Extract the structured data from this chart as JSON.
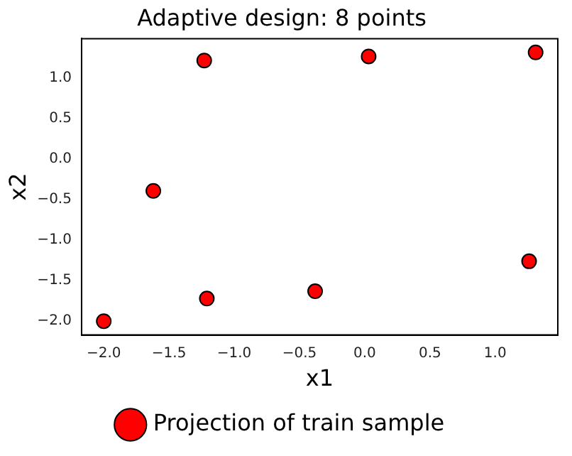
{
  "chart_data": {
    "type": "scatter",
    "title": "Adaptive design: 8 points",
    "xlabel": "x1",
    "ylabel": "x2",
    "series": [
      {
        "name": "Projection of train sample",
        "color": "#ff0000",
        "x": [
          -1.23,
          0.03,
          1.31,
          -1.62,
          1.26,
          -0.38,
          -1.21,
          -2.0
        ],
        "values": [
          1.22,
          1.27,
          1.32,
          -0.39,
          -1.26,
          -1.63,
          -1.72,
          -2.0
        ]
      }
    ],
    "xlim": [
      -2.17,
      1.48
    ],
    "ylim": [
      -2.17,
      1.49
    ],
    "xticks": [
      {
        "value": -2,
        "label": "−2.0"
      },
      {
        "value": -1.5,
        "label": "−1.5"
      },
      {
        "value": -1,
        "label": "−1.0"
      },
      {
        "value": -0.5,
        "label": "−0.5"
      },
      {
        "value": 0,
        "label": "0.0"
      },
      {
        "value": 0.5,
        "label": "0.5"
      },
      {
        "value": 1,
        "label": "1.0"
      }
    ],
    "yticks": [
      {
        "value": -2,
        "label": "−2.0"
      },
      {
        "value": -1.5,
        "label": "−1.5"
      },
      {
        "value": -1,
        "label": "−1.0"
      },
      {
        "value": -0.5,
        "label": "−0.5"
      },
      {
        "value": 0,
        "label": "0.0"
      },
      {
        "value": 0.5,
        "label": "0.5"
      },
      {
        "value": 1,
        "label": "1.0"
      }
    ],
    "grid": false,
    "legend": "bottom",
    "marker": "circle"
  }
}
